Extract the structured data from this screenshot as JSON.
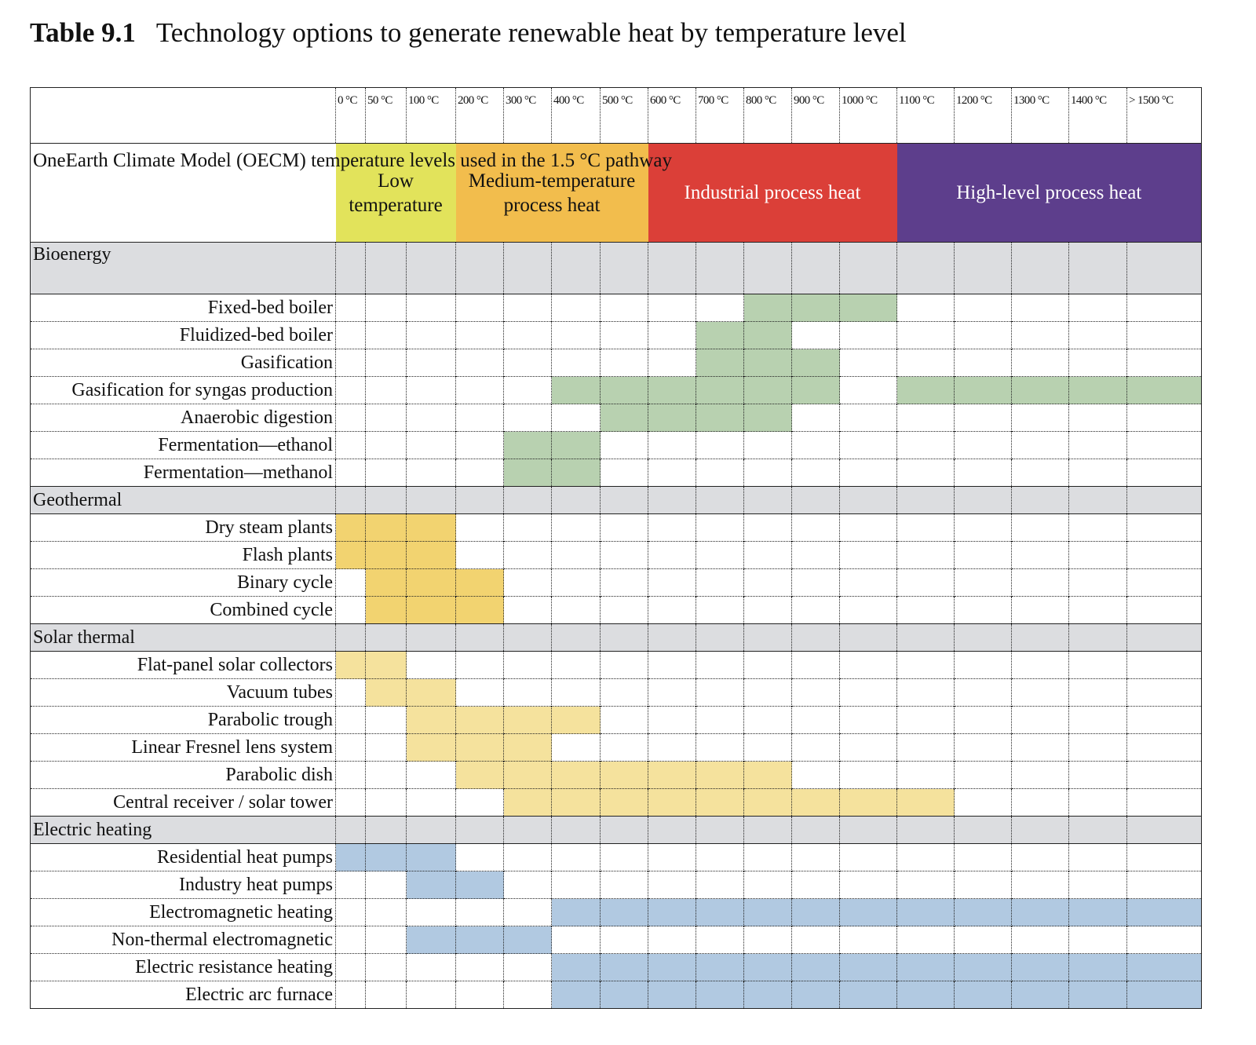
{
  "title": {
    "number": "Table 9.1",
    "text": "Technology options to generate renewable heat by temperature level"
  },
  "columns": [
    "0 °C",
    "50 °C",
    "100 °C",
    "200 °C",
    "300 °C",
    "400 °C",
    "500 °C",
    "600 °C",
    "700 °C",
    "800 °C",
    "900 °C",
    "1000 °C",
    "1100 °C",
    "1200 °C",
    "1300 °C",
    "1400 °C",
    "> 1500 °C"
  ],
  "bands_label": "OneEarth Climate Model (OECM) temperature levels used in the 1.5 °C pathway",
  "bands": [
    {
      "label": "Low temperature",
      "span": 3,
      "color": "#e2e35b",
      "text_color": "#111111"
    },
    {
      "label": "Medium-temperature process heat",
      "span": 4,
      "color": "#f2bd4d",
      "text_color": "#111111"
    },
    {
      "label": "Industrial process heat",
      "span": 5,
      "color": "#db3f38",
      "text_color": "#ffffff"
    },
    {
      "label": "High-level process heat",
      "span": 5,
      "color": "#5d3e8c",
      "text_color": "#ffffff"
    }
  ],
  "groups": [
    {
      "name": "Bioenergy",
      "color": "#b8d1b0",
      "rows": [
        {
          "label": "Fixed-bed boiler",
          "filled": [
            9,
            10,
            11
          ]
        },
        {
          "label": "Fluidized-bed boiler",
          "filled": [
            8,
            9
          ]
        },
        {
          "label": "Gasification",
          "filled": [
            8,
            9,
            10
          ]
        },
        {
          "label": "Gasification for syngas production",
          "filled": [
            5,
            6,
            7,
            8,
            9,
            10,
            12,
            13,
            14,
            15,
            16
          ]
        },
        {
          "label": "Anaerobic digestion",
          "filled": [
            6,
            7,
            8,
            9
          ]
        },
        {
          "label": "Fermentation—ethanol",
          "filled": [
            4,
            5
          ]
        },
        {
          "label": "Fermentation—methanol",
          "filled": [
            4,
            5
          ]
        }
      ]
    },
    {
      "name": "Geothermal",
      "color": "#f2d370",
      "rows": [
        {
          "label": "Dry steam plants",
          "filled": [
            0,
            1,
            2
          ]
        },
        {
          "label": "Flash plants",
          "filled": [
            0,
            1,
            2
          ]
        },
        {
          "label": "Binary cycle",
          "filled": [
            1,
            2,
            3
          ]
        },
        {
          "label": "Combined cycle",
          "filled": [
            1,
            2,
            3
          ]
        }
      ]
    },
    {
      "name": "Solar thermal",
      "color": "#f5e29d",
      "rows": [
        {
          "label": "Flat-panel solar collectors",
          "filled": [
            0,
            1
          ]
        },
        {
          "label": "Vacuum tubes",
          "filled": [
            1,
            2
          ]
        },
        {
          "label": "Parabolic trough",
          "filled": [
            2,
            3,
            4,
            5
          ]
        },
        {
          "label": "Linear Fresnel lens system",
          "filled": [
            2,
            3,
            4
          ]
        },
        {
          "label": "Parabolic dish",
          "filled": [
            3,
            4,
            5,
            6,
            7,
            8,
            9
          ]
        },
        {
          "label": "Central receiver / solar tower",
          "filled": [
            4,
            5,
            6,
            7,
            8,
            9,
            10,
            11,
            12
          ]
        }
      ]
    },
    {
      "name": "Electric heating",
      "color": "#b1c9e1",
      "rows": [
        {
          "label": "Residential heat pumps",
          "filled": [
            0,
            1,
            2
          ]
        },
        {
          "label": "Industry heat pumps",
          "filled": [
            2,
            3
          ]
        },
        {
          "label": "Electromagnetic heating",
          "filled": [
            5,
            6,
            7,
            8,
            9,
            10,
            11,
            12,
            13,
            14,
            15,
            16
          ]
        },
        {
          "label": "Non-thermal electromagnetic",
          "filled": [
            2,
            3,
            4
          ]
        },
        {
          "label": "Electric resistance heating",
          "filled": [
            5,
            6,
            7,
            8,
            9,
            10,
            11,
            12,
            13,
            14,
            15,
            16
          ]
        },
        {
          "label": "Electric arc furnace",
          "filled": [
            5,
            6,
            7,
            8,
            9,
            10,
            11,
            12,
            13,
            14,
            15,
            16
          ]
        }
      ]
    }
  ]
}
